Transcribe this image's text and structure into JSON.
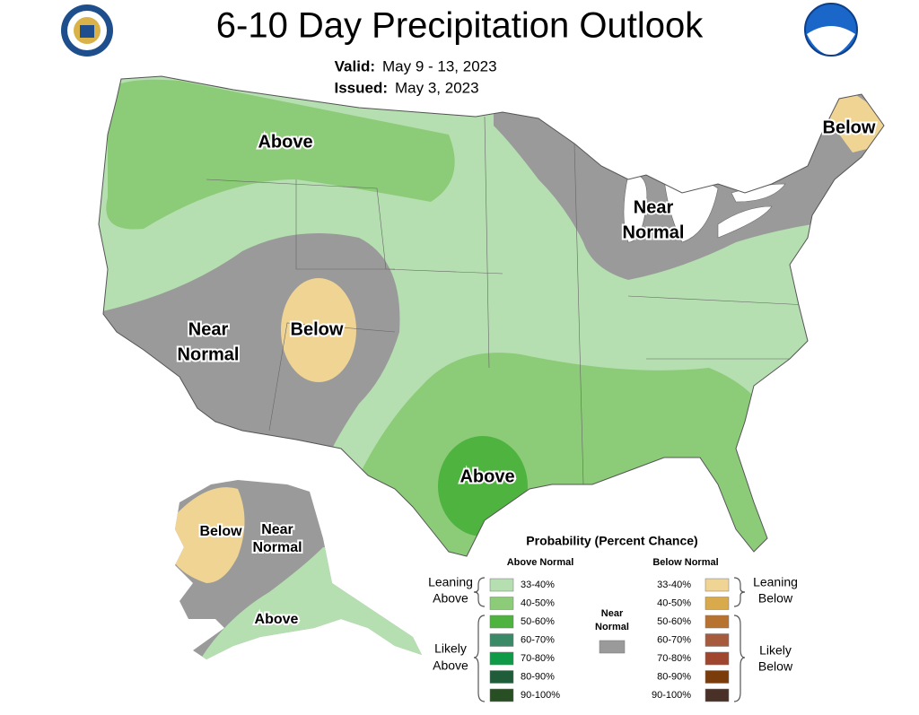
{
  "header": {
    "title": "6-10 Day Precipitation Outlook",
    "valid_label": "Valid:",
    "valid": "May 9 - 13, 2023",
    "issued_label": "Issued:",
    "issued": "May 3, 2023"
  },
  "map_labels": [
    {
      "lines": [
        "Above"
      ]
    },
    {
      "lines": [
        "Below"
      ]
    },
    {
      "lines": [
        "Near",
        "Normal"
      ]
    },
    {
      "lines": [
        "Near",
        "Normal"
      ]
    },
    {
      "lines": [
        "Below"
      ]
    },
    {
      "lines": [
        "Above"
      ]
    },
    {
      "lines": [
        "Below"
      ]
    },
    {
      "lines": [
        "Near",
        "Normal"
      ]
    },
    {
      "lines": [
        "Above"
      ]
    }
  ],
  "legend": {
    "title": "Probability (Percent Chance)",
    "above_heading": "Above Normal",
    "below_heading": "Below Normal",
    "above": [
      {
        "label": "33-40%",
        "color": "#b5dfb0"
      },
      {
        "label": "40-50%",
        "color": "#8ccb78"
      },
      {
        "label": "50-60%",
        "color": "#4fb33f"
      },
      {
        "label": "60-70%",
        "color": "#3a8a68"
      },
      {
        "label": "70-80%",
        "color": "#0f9a48"
      },
      {
        "label": "80-90%",
        "color": "#1f5c39"
      },
      {
        "label": "90-100%",
        "color": "#284e24"
      }
    ],
    "below": [
      {
        "label": "33-40%",
        "color": "#f0d494"
      },
      {
        "label": "40-50%",
        "color": "#d9aa4b"
      },
      {
        "label": "50-60%",
        "color": "#b8722f"
      },
      {
        "label": "60-70%",
        "color": "#a65b3c"
      },
      {
        "label": "70-80%",
        "color": "#a0462f"
      },
      {
        "label": "80-90%",
        "color": "#7a3c0b"
      },
      {
        "label": "90-100%",
        "color": "#4a3128"
      }
    ],
    "near": {
      "lines": [
        "Near",
        "Normal"
      ],
      "color": "#9a9a9a"
    },
    "leaning_above": [
      "Leaning",
      "Above"
    ],
    "likely_above": [
      "Likely",
      "Above"
    ],
    "leaning_below": [
      "Leaning",
      "Below"
    ],
    "likely_below": [
      "Likely",
      "Below"
    ]
  }
}
